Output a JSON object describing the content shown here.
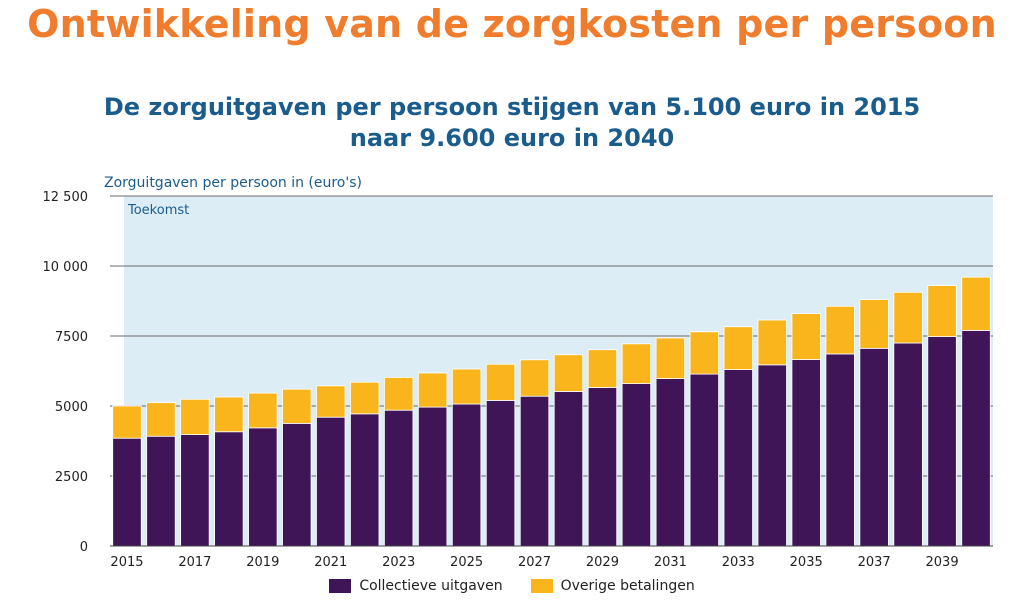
{
  "header": {
    "title": "Ontwikkeling van de zorgkosten per persoon",
    "subtitle_line1": "De zorguitgaven per persoon stijgen van 5.100 euro in 2015",
    "subtitle_line2": "naar 9.600 euro in 2040"
  },
  "colors": {
    "title": "#ef7d2d",
    "subtitle": "#1a5c8c",
    "collective": "#3f1558",
    "other": "#fbb51c",
    "future_band": "#dcedf6",
    "axis_label": "#1a5c8c"
  },
  "chart_data": {
    "type": "bar",
    "stacked": true,
    "ylabel": "Zorguitgaven per persoon in (euro's)",
    "band_label": "Toekomst",
    "ylim": [
      0,
      12500
    ],
    "yticks": [
      0,
      2500,
      5000,
      7500,
      10000,
      12500
    ],
    "ytick_labels": [
      "0",
      "2500",
      "5000",
      "7500",
      "10 000",
      "12 500"
    ],
    "categories": [
      "2015",
      "2016",
      "2017",
      "2018",
      "2019",
      "2020",
      "2021",
      "2022",
      "2023",
      "2024",
      "2025",
      "2026",
      "2027",
      "2028",
      "2029",
      "2030",
      "2031",
      "2032",
      "2033",
      "2034",
      "2035",
      "2036",
      "2037",
      "2038",
      "2039",
      "2040"
    ],
    "xtick_labels": [
      "2015",
      "2017",
      "2019",
      "2021",
      "2023",
      "2025",
      "2027",
      "2029",
      "2031",
      "2033",
      "2035",
      "2037",
      "2039"
    ],
    "series": [
      {
        "name": "Collectieve uitgaven",
        "color": "#3f1558",
        "values": [
          3850,
          3920,
          3980,
          4080,
          4220,
          4380,
          4600,
          4720,
          4850,
          4960,
          5070,
          5200,
          5350,
          5520,
          5660,
          5800,
          5980,
          6140,
          6300,
          6470,
          6660,
          6860,
          7060,
          7250,
          7480,
          7700
        ]
      },
      {
        "name": "Overige betalingen",
        "color": "#fbb51c",
        "values": [
          1150,
          1200,
          1260,
          1240,
          1240,
          1220,
          1120,
          1130,
          1170,
          1220,
          1250,
          1290,
          1300,
          1310,
          1350,
          1420,
          1450,
          1510,
          1530,
          1600,
          1640,
          1700,
          1740,
          1810,
          1820,
          1900
        ]
      }
    ],
    "grid": true,
    "legend_position": "bottom"
  }
}
